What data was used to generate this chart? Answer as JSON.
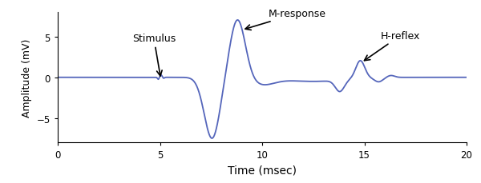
{
  "title": "",
  "xlabel": "Time (msec)",
  "ylabel": "Amplitude (mV)",
  "xlim": [
    0,
    20
  ],
  "ylim": [
    -8.0,
    8.0
  ],
  "yticks": [
    -5,
    0,
    5
  ],
  "xticks": [
    0,
    5,
    10,
    15,
    20
  ],
  "line_color": "#5566bb",
  "line_width": 1.3,
  "bg_color": "#ffffff",
  "figsize": [
    6.0,
    2.3
  ],
  "dpi": 100
}
